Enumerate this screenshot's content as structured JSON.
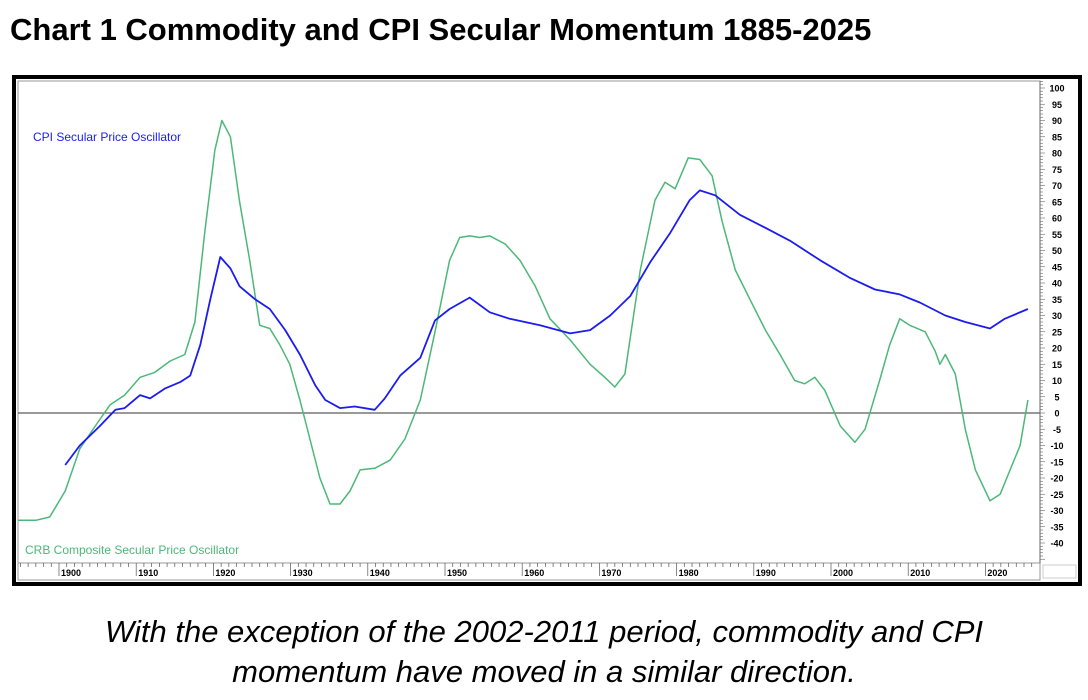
{
  "title": "Chart 1 Commodity and CPI Secular Momentum 1885-2025",
  "caption_line1": "With the exception of the 2002-2011 period, commodity and CPI",
  "caption_line2": "momentum have moved in a similar direction.",
  "chart_data": {
    "type": "line",
    "title": "Chart 1 Commodity and CPI Secular Momentum 1885-2025",
    "xlim": [
      1894.7,
      2026
    ],
    "ylim": [
      -45,
      102
    ],
    "x_ticks": [
      1900,
      1910,
      1920,
      1930,
      1940,
      1950,
      1960,
      1970,
      1980,
      1990,
      2000,
      2010,
      2020
    ],
    "y_ticks": [
      100,
      95,
      90,
      85,
      80,
      75,
      70,
      65,
      60,
      55,
      50,
      45,
      40,
      35,
      30,
      25,
      20,
      15,
      10,
      5,
      0,
      -5,
      -10,
      -15,
      -20,
      -25,
      -30,
      -35,
      -40
    ],
    "y_axis_side": "right",
    "zero_line": true,
    "grid": false,
    "series": [
      {
        "name": "CPI Secular Price Oscillator",
        "color": "#1c1cf0",
        "label_placement": "top-left",
        "x": [
          1900.8,
          1902.7,
          1905.3,
          1907.3,
          1908.5,
          1910.5,
          1911.8,
          1913.7,
          1915.7,
          1917,
          1918.3,
          1919.6,
          1920.9,
          1922.2,
          1923.4,
          1925.4,
          1927.3,
          1929.3,
          1931.2,
          1933.2,
          1934.5,
          1936.4,
          1938.3,
          1940.9,
          1942.2,
          1944.2,
          1946.8,
          1948.7,
          1950.6,
          1953.2,
          1955.8,
          1958.4,
          1962.3,
          1966.2,
          1968.8,
          1971.4,
          1974,
          1976.6,
          1979.2,
          1981.7,
          1983,
          1985,
          1988.2,
          1991.5,
          1994.7,
          1998.6,
          2002.5,
          2005.7,
          2008.9,
          2011.5,
          2014.8,
          2017.4,
          2020.6,
          2022.5,
          2025.5
        ],
        "y": [
          -16,
          -10,
          -4,
          1,
          1.5,
          5.5,
          4.5,
          7.5,
          9.5,
          11.5,
          21,
          35,
          48,
          44.5,
          39,
          35,
          32,
          25.5,
          18,
          8.5,
          4,
          1.5,
          2,
          1,
          4.5,
          11.5,
          17,
          28.5,
          32,
          35.5,
          31,
          29,
          27,
          24.5,
          25.5,
          30,
          36,
          46.5,
          55.5,
          65.5,
          68.5,
          67,
          61,
          57,
          53,
          47,
          41.5,
          38,
          36.5,
          34,
          30,
          28,
          26,
          29,
          32
        ]
      },
      {
        "name": "CRB Composite Secular Price Oscillator",
        "color": "#4cb878",
        "label_placement": "bottom-left",
        "x": [
          1894.7,
          1897,
          1898.8,
          1900.8,
          1902.7,
          1904.7,
          1906.6,
          1908.5,
          1910.5,
          1912.4,
          1914.4,
          1916.3,
          1917.6,
          1918.9,
          1920.2,
          1921.1,
          1922.2,
          1923.4,
          1924.7,
          1926,
          1927.3,
          1928.6,
          1929.9,
          1931.2,
          1932.5,
          1933.8,
          1935.1,
          1936.4,
          1937.7,
          1939,
          1940.9,
          1942.9,
          1944.8,
          1946.8,
          1948.7,
          1950.6,
          1951.9,
          1953.2,
          1954.5,
          1955.8,
          1957.8,
          1959.7,
          1961.7,
          1963.6,
          1966.2,
          1968.8,
          1970.7,
          1972,
          1973.3,
          1975.3,
          1977.2,
          1978.5,
          1979.8,
          1981.5,
          1983,
          1984.6,
          1985.9,
          1987.6,
          1989.5,
          1991.5,
          1993.4,
          1995.3,
          1996.6,
          1997.9,
          1999.2,
          2001.2,
          2003.1,
          2004.4,
          2006.3,
          2007.6,
          2008.9,
          2010.2,
          2012.2,
          2013.5,
          2014.1,
          2014.8,
          2016.1,
          2017.4,
          2018.7,
          2020.6,
          2021.9,
          2023.2,
          2024.5,
          2025.5
        ],
        "y": [
          -33,
          -33,
          -32,
          -24,
          -11,
          -4,
          2.5,
          5.5,
          11,
          12.5,
          16,
          18,
          28,
          56,
          81,
          90,
          85,
          65,
          47,
          27,
          26,
          21,
          15,
          4,
          -8,
          -20,
          -28,
          -28,
          -24,
          -17.5,
          -17,
          -14.5,
          -8,
          4,
          25,
          47,
          54,
          54.5,
          54,
          54.5,
          52,
          47,
          39,
          29,
          22.5,
          15,
          11,
          8,
          12,
          44,
          65.5,
          71,
          69,
          78.5,
          78,
          73,
          59,
          44,
          35,
          25.5,
          18,
          10,
          9,
          11,
          7,
          -4,
          -9,
          -5,
          10,
          21,
          29,
          27,
          25,
          19,
          15,
          18,
          12,
          -5,
          -17.5,
          -27,
          -25,
          -17.5,
          -10,
          4
        ]
      }
    ]
  }
}
